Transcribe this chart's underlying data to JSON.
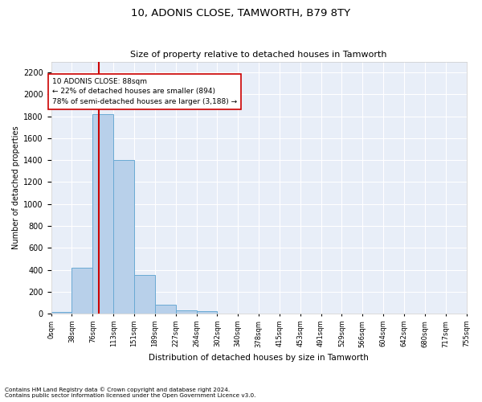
{
  "title": "10, ADONIS CLOSE, TAMWORTH, B79 8TY",
  "subtitle": "Size of property relative to detached houses in Tamworth",
  "xlabel": "Distribution of detached houses by size in Tamworth",
  "ylabel": "Number of detached properties",
  "bin_labels": [
    "0sqm",
    "38sqm",
    "76sqm",
    "113sqm",
    "151sqm",
    "189sqm",
    "227sqm",
    "264sqm",
    "302sqm",
    "340sqm",
    "378sqm",
    "415sqm",
    "453sqm",
    "491sqm",
    "529sqm",
    "566sqm",
    "604sqm",
    "642sqm",
    "680sqm",
    "717sqm",
    "755sqm"
  ],
  "bar_values": [
    15,
    420,
    1820,
    1400,
    350,
    80,
    32,
    20,
    0,
    0,
    0,
    0,
    0,
    0,
    0,
    0,
    0,
    0,
    0,
    0
  ],
  "bar_color": "#b8d0ea",
  "bar_edge_color": "#6aaad4",
  "annotation_text_line1": "10 ADONIS CLOSE: 88sqm",
  "annotation_text_line2": "← 22% of detached houses are smaller (894)",
  "annotation_text_line3": "78% of semi-detached houses are larger (3,188) →",
  "red_line_color": "#cc0000",
  "annotation_box_edge": "#cc0000",
  "ylim": [
    0,
    2300
  ],
  "yticks": [
    0,
    200,
    400,
    600,
    800,
    1000,
    1200,
    1400,
    1600,
    1800,
    2000,
    2200
  ],
  "background_color": "#e8eef8",
  "grid_color": "#ffffff",
  "footer_line1": "Contains HM Land Registry data © Crown copyright and database right 2024.",
  "footer_line2": "Contains public sector information licensed under the Open Government Licence v3.0."
}
